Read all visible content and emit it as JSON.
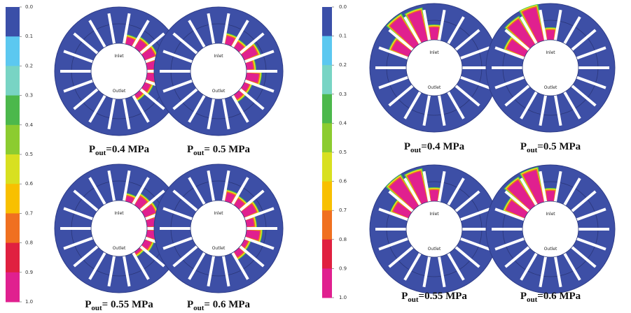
{
  "groups": [
    {
      "colorbar": [
        "0.0",
        "0.1",
        "0.2",
        "0.3",
        "0.4",
        "0.5",
        "0.6",
        "0.7",
        "0.8",
        "0.9",
        "1.0"
      ],
      "panels": [
        {
          "caption": {
            "symbol": "P",
            "subscript": "out",
            "text": "=0.4 MPa"
          },
          "inlet": "Inlet",
          "outlet": "Outlet"
        },
        {
          "caption": {
            "symbol": "P",
            "subscript": "out",
            "text": "= 0.5 MPa"
          },
          "inlet": "Inlet",
          "outlet": "Outlet"
        },
        {
          "caption": {
            "symbol": "P",
            "subscript": "out",
            "text": "= 0.55 MPa"
          },
          "inlet": "Inlet",
          "outlet": "Outlet"
        },
        {
          "caption": {
            "symbol": "P",
            "subscript": "out",
            "text": "= 0.6 MPa"
          },
          "inlet": "Inlet",
          "outlet": "Outlet"
        }
      ]
    },
    {
      "colorbar": [
        "0.0",
        "0.1",
        "0.2",
        "0.3",
        "0.4",
        "0.5",
        "0.6",
        "0.7",
        "0.8",
        "0.9",
        "1.0"
      ],
      "panels": [
        {
          "caption": {
            "symbol": "P",
            "subscript": "out",
            "text": "=0.4 MPa"
          },
          "inlet": "Inlet",
          "outlet": "Outlet"
        },
        {
          "caption": {
            "symbol": "P",
            "subscript": "out",
            "text": "=0.5 MPa"
          },
          "inlet": "Inlet",
          "outlet": "Outlet"
        },
        {
          "caption": {
            "symbol": "P",
            "subscript": "out",
            "text": "=0.55 MPa"
          },
          "inlet": "Inlet",
          "outlet": "Outlet"
        },
        {
          "caption": {
            "symbol": "P",
            "subscript": "out",
            "text": "=0.6 MPa"
          },
          "inlet": "Inlet",
          "outlet": "Outlet"
        }
      ]
    }
  ]
}
